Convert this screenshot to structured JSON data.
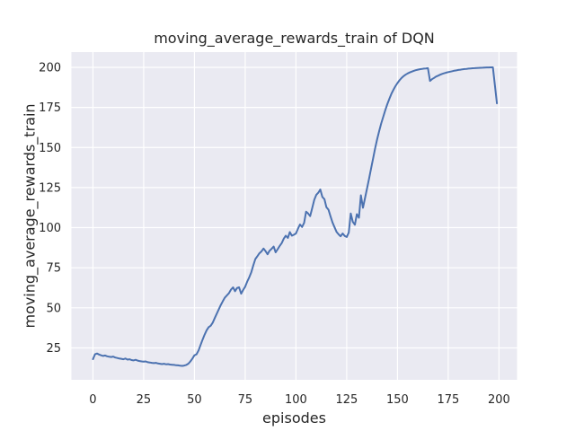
{
  "colors": {
    "figure_bg": "#ffffff",
    "plot_bg": "#eaeaf2",
    "grid": "#ffffff",
    "text": "#262626",
    "line": "#4c72b0"
  },
  "chart_data": {
    "type": "line",
    "title": "moving_average_rewards_train of DQN",
    "xlabel": "episodes",
    "ylabel": "moving_average_rewards_train",
    "x_ticks": [
      0,
      25,
      50,
      75,
      100,
      125,
      150,
      175,
      200
    ],
    "y_ticks": [
      25,
      50,
      75,
      100,
      125,
      150,
      175,
      200
    ],
    "xlim": [
      -10.6,
      208.9
    ],
    "ylim": [
      5.1,
      209.5
    ],
    "grid": true,
    "legend": false,
    "x_description": "episode index, one point per episode, 0 to 199",
    "series": [
      {
        "name": "moving_average_rewards_train",
        "values": [
          18.0,
          21.0,
          21.5,
          20.9,
          20.4,
          20.0,
          20.3,
          19.8,
          19.5,
          19.3,
          19.6,
          19.0,
          18.7,
          18.4,
          18.2,
          17.9,
          18.4,
          17.7,
          17.9,
          17.4,
          17.2,
          17.6,
          17.1,
          16.8,
          16.6,
          16.4,
          16.6,
          16.1,
          15.9,
          15.7,
          15.5,
          15.7,
          15.3,
          15.1,
          14.9,
          15.1,
          14.8,
          14.9,
          14.6,
          14.5,
          14.4,
          14.2,
          14.1,
          13.9,
          13.8,
          14.0,
          14.4,
          15.2,
          16.6,
          18.4,
          20.4,
          21.0,
          23.4,
          26.8,
          30.2,
          33.2,
          36.0,
          38.0,
          38.8,
          40.8,
          43.6,
          46.4,
          49.2,
          51.8,
          54.2,
          56.4,
          57.8,
          59.2,
          61.4,
          62.8,
          60.4,
          62.4,
          62.8,
          58.8,
          61.2,
          63.2,
          66.4,
          69.0,
          72.2,
          76.6,
          80.4,
          82.2,
          84.0,
          85.2,
          87.0,
          85.4,
          83.4,
          85.6,
          86.8,
          88.2,
          84.6,
          86.6,
          88.6,
          90.4,
          93.2,
          95.0,
          93.6,
          97.2,
          95.0,
          95.6,
          96.4,
          99.4,
          102.0,
          100.4,
          103.0,
          110.0,
          108.8,
          107.2,
          112.2,
          117.4,
          120.4,
          121.8,
          123.8,
          119.2,
          117.8,
          112.8,
          111.2,
          107.2,
          103.2,
          100.2,
          97.4,
          95.8,
          94.6,
          96.4,
          94.8,
          94.2,
          97.0,
          108.8,
          103.6,
          101.8,
          108.4,
          106.2,
          120.2,
          112.4,
          118.2,
          124.4,
          130.6,
          136.8,
          143.2,
          149.4,
          155.2,
          160.4,
          165.0,
          169.2,
          173.2,
          177.0,
          180.4,
          183.4,
          186.0,
          188.2,
          190.2,
          191.9,
          193.3,
          194.5,
          195.4,
          196.2,
          196.8,
          197.3,
          197.8,
          198.2,
          198.5,
          198.8,
          199.0,
          199.2,
          199.3,
          199.5,
          191.5,
          192.6,
          193.4,
          194.2,
          194.8,
          195.4,
          195.9,
          196.3,
          196.7,
          197.0,
          197.3,
          197.6,
          197.9,
          198.1,
          198.35,
          198.55,
          198.75,
          198.9,
          199.05,
          199.2,
          199.3,
          199.4,
          199.5,
          199.6,
          199.65,
          199.7,
          199.78,
          199.85,
          199.9,
          199.93,
          199.96,
          200.0,
          188.5,
          177.5
        ]
      }
    ]
  }
}
